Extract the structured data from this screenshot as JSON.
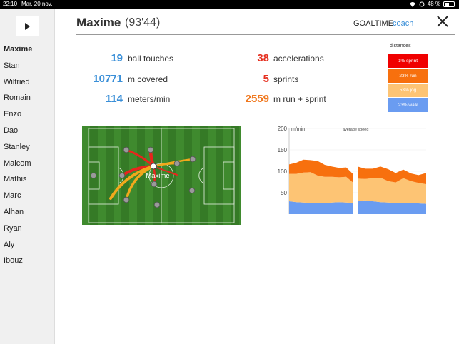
{
  "status_bar": {
    "time": "22:10",
    "date": "Mar. 20 nov.",
    "battery": "48 %",
    "battery_level": 0.48
  },
  "sidebar": {
    "players": [
      "Maxime",
      "Stan",
      "Wilfried",
      "Romain",
      "Enzo",
      "Dao",
      "Stanley",
      "Malcom",
      "Mathis",
      "Marc",
      "Alhan",
      "Ryan",
      "Aly",
      "Ibouz"
    ],
    "active": "Maxime"
  },
  "header": {
    "player_name": "Maxime",
    "match_time": "(93'44)",
    "brand": "GOALTIME",
    "brand_suffix": "coach"
  },
  "stats": {
    "ball_touches": {
      "value": "19",
      "label": "ball touches"
    },
    "covered": {
      "value": "10771",
      "label": "m covered"
    },
    "meters_min": {
      "value": "114",
      "label": "meters/min"
    },
    "accelerations": {
      "value": "38",
      "label": "accelerations"
    },
    "sprints": {
      "value": "5",
      "label": "sprints"
    },
    "run_sprint": {
      "value": "2559",
      "label": "m run + sprint"
    }
  },
  "distances": {
    "title": "distances :",
    "items": [
      {
        "label": "1% sprint",
        "color": "#f00000"
      },
      {
        "label": "23% run",
        "color": "#f7700e"
      },
      {
        "label": "53% jog",
        "color": "#fdc474"
      },
      {
        "label": "23% walk",
        "color": "#6a9cf1"
      }
    ]
  },
  "pitch": {
    "focus_label": "Maxime"
  },
  "chart_data": {
    "type": "area",
    "title": "average speed",
    "ylabel": "m/min",
    "ylim": [
      0,
      200
    ],
    "yticks": [
      50,
      100,
      150,
      200
    ],
    "x": [
      0,
      1,
      2,
      3,
      4,
      5,
      6,
      7,
      8,
      9,
      10,
      11,
      12,
      13,
      14,
      15,
      16,
      17,
      18,
      19
    ],
    "series": [
      {
        "name": "walk",
        "color": "#6a9cf1",
        "values": [
          30,
          28,
          27,
          26,
          26,
          25,
          27,
          28,
          27,
          26,
          31,
          32,
          30,
          28,
          27,
          26,
          26,
          25,
          25,
          24
        ]
      },
      {
        "name": "jog",
        "color": "#fdc474",
        "values": [
          64,
          66,
          70,
          72,
          64,
          62,
          60,
          58,
          60,
          47,
          52,
          50,
          54,
          57,
          50,
          48,
          58,
          52,
          48,
          46
        ]
      },
      {
        "name": "run",
        "color": "#f7700e",
        "values": [
          22,
          26,
          30,
          28,
          34,
          28,
          24,
          22,
          22,
          20,
          28,
          24,
          22,
          26,
          28,
          22,
          20,
          18,
          18,
          26
        ]
      },
      {
        "name": "sprint",
        "color": "#f00000",
        "values": [
          0,
          0,
          0,
          0,
          0,
          0,
          0,
          0,
          0,
          0,
          0,
          0,
          0,
          0,
          0,
          0,
          0,
          0,
          0,
          0
        ]
      }
    ],
    "gap_after_index": 9
  }
}
